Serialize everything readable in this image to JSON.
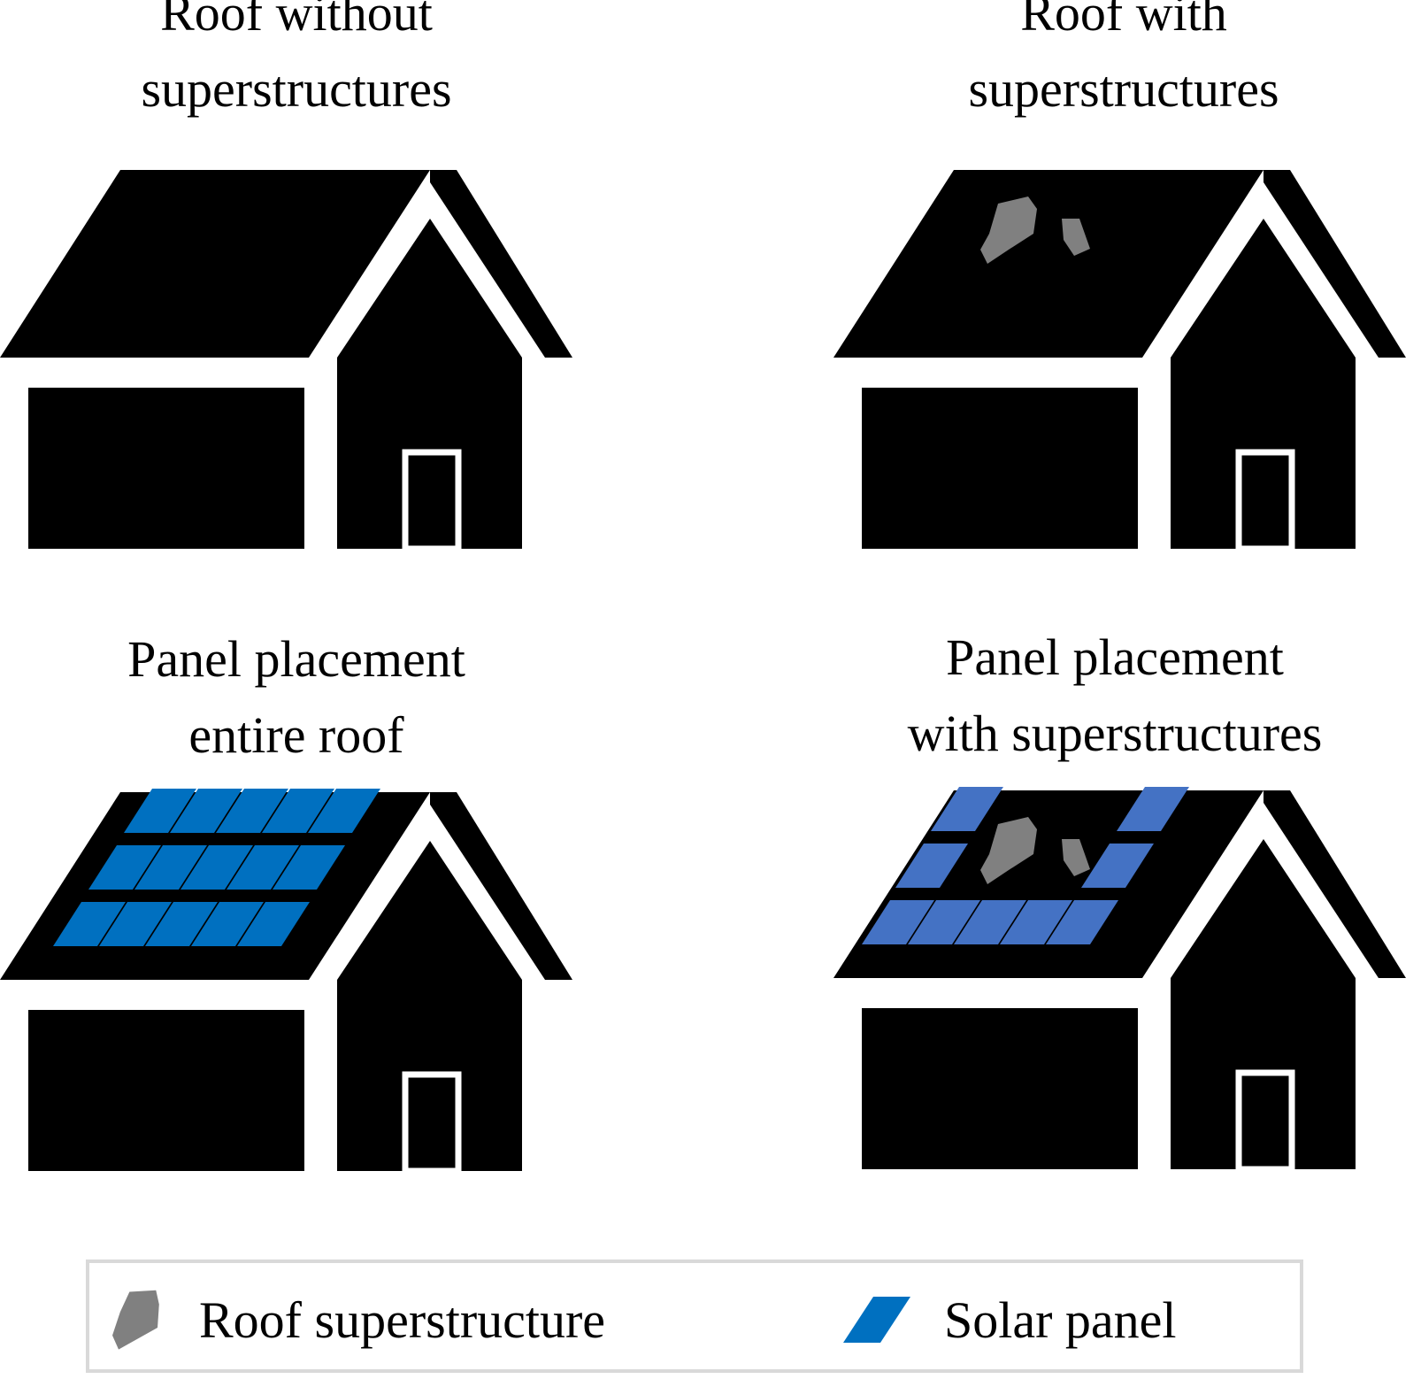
{
  "panels": [
    {
      "title_lines": [
        "Roof without",
        "superstructures"
      ],
      "has_superstructures": false,
      "has_panels": false
    },
    {
      "title_lines": [
        "Roof with",
        "superstructures"
      ],
      "has_superstructures": true,
      "has_panels": false
    },
    {
      "title_lines": [
        "Panel placement",
        "entire roof"
      ],
      "has_superstructures": false,
      "has_panels": true
    },
    {
      "title_lines": [
        "Panel placement",
        "with superstructures"
      ],
      "has_superstructures": true,
      "has_panels": true
    }
  ],
  "legend": {
    "superstructure_label": "Roof superstructure",
    "panel_label": "Solar panel"
  },
  "colors": {
    "house": "#000000",
    "superstructure": "#808080",
    "solar_panel_full": "#0070c0",
    "solar_panel_partial": "#4472c4",
    "legend_border": "#d9d9d9"
  }
}
